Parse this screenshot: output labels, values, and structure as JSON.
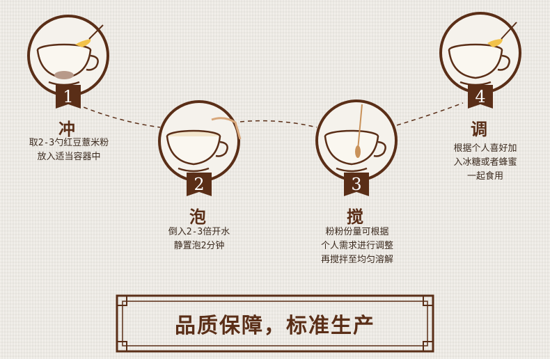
{
  "steps": [
    {
      "number": "1",
      "title": "冲",
      "description": "取2-3勺红豆薏米粉\n放入适当容器中"
    },
    {
      "number": "2",
      "title": "泡",
      "description": "倒入2-3倍开水\n静置泡2分钟"
    },
    {
      "number": "3",
      "title": "搅",
      "description": "粉粉份量可根据\n个人需求进行调整\n再搅拌至均匀溶解"
    },
    {
      "number": "4",
      "title": "调",
      "description": "根据个人喜好加\n入冰糖或者蜂蜜\n一起食用"
    }
  ],
  "slogan": "品质保障，标准生产",
  "colors": {
    "brown": "#5a2e17",
    "background": "#efece6",
    "text": "#3b2a1e"
  }
}
